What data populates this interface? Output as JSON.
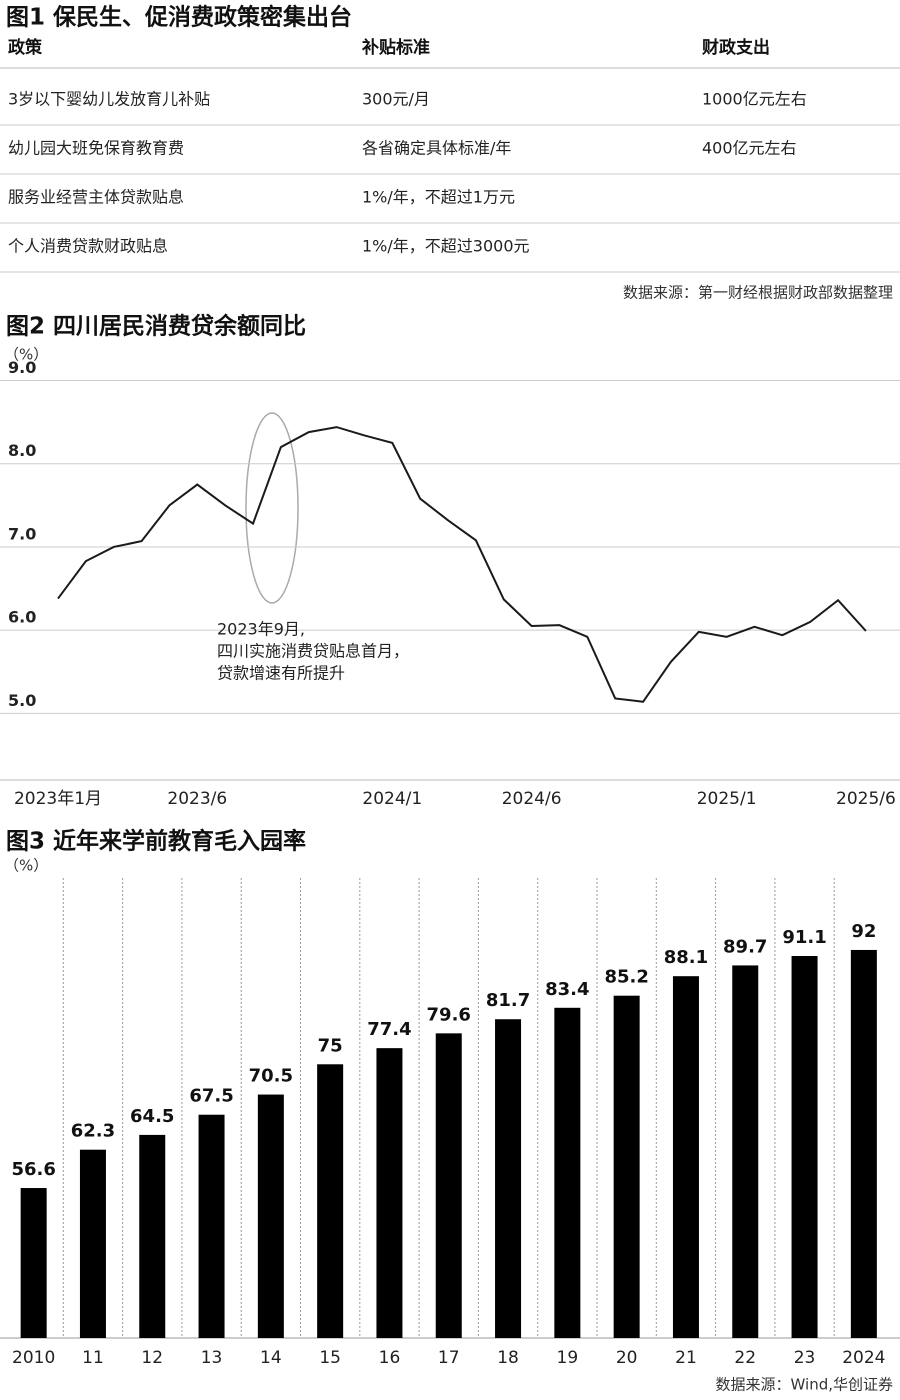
{
  "table": {
    "title": "图1 保民生、促消费政策密集出台",
    "headers": [
      "政策",
      "补贴标准",
      "财政支出"
    ],
    "rows": [
      [
        "3岁以下婴幼儿发放育儿补贴",
        "300元/月",
        "1000亿元左右"
      ],
      [
        "幼儿园大班免保育教育费",
        "各省确定具体标准/年",
        "400亿元左右"
      ],
      [
        "服务业经营主体贷款贴息",
        "1%/年，不超过1万元"
      ],
      [
        "个人消费贷款财政贴息",
        "1%/年，不超过3000元"
      ]
    ],
    "source": "数据来源：第一财经根据财政部数据整理"
  },
  "chart_data": [
    {
      "type": "line",
      "title": "图2 四川居民消费贷余额同比",
      "y_label": "（%）",
      "color": "#1a1a1a",
      "categories": [
        "2023年1月",
        null,
        null,
        null,
        null,
        "2023/6",
        null,
        null,
        null,
        null,
        null,
        null,
        "2024/1",
        null,
        null,
        null,
        null,
        "2024/6",
        null,
        null,
        null,
        null,
        null,
        null,
        "2025/1",
        null,
        null,
        null,
        null,
        "2025/6"
      ],
      "values": [
        6.38,
        6.83,
        7.0,
        7.07,
        7.5,
        7.75,
        7.5,
        7.28,
        8.2,
        8.38,
        8.44,
        8.34,
        8.25,
        7.58,
        7.32,
        7.08,
        6.37,
        6.05,
        6.06,
        5.92,
        5.18,
        5.14,
        5.62,
        5.98,
        5.92,
        6.04,
        5.94,
        6.1,
        6.36,
        5.99
      ],
      "ylim": [
        4.2,
        9.15
      ],
      "yticks": [
        {
          "value": 5,
          "label": "5.0"
        },
        {
          "value": 6,
          "label": "6.0"
        },
        {
          "value": 7,
          "label": "7.0"
        },
        {
          "value": 8,
          "label": "8.0"
        },
        {
          "value": 9,
          "label": "9.0"
        }
      ],
      "grid": true,
      "annotation": [
        "2023年9月,",
        "四川实施消费贷贴息首月，",
        "贷款增速有所提升"
      ]
    },
    {
      "type": "bar",
      "title": "图3 近年来学前教育毛入园率",
      "y_label": "（%）",
      "color": "#000000",
      "categories": [
        "2010",
        "11",
        "12",
        "13",
        "14",
        "15",
        "16",
        "17",
        "18",
        "19",
        "20",
        "21",
        "22",
        "23",
        "2024"
      ],
      "values": [
        56.6,
        62.3,
        64.5,
        67.5,
        70.5,
        75,
        77.4,
        79.6,
        81.7,
        83.4,
        85.2,
        88.1,
        89.7,
        91.1,
        92
      ],
      "ylim": [
        34.3,
        102.7
      ],
      "source": "数据来源：Wind,华创证券"
    }
  ]
}
